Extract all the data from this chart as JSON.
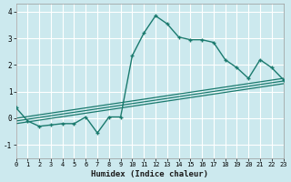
{
  "title": "",
  "xlabel": "Humidex (Indice chaleur)",
  "xlim": [
    0,
    23
  ],
  "ylim": [
    -1.5,
    4.3
  ],
  "yticks": [
    -1,
    0,
    1,
    2,
    3,
    4
  ],
  "xticks": [
    0,
    1,
    2,
    3,
    4,
    5,
    6,
    7,
    8,
    9,
    10,
    11,
    12,
    13,
    14,
    15,
    16,
    17,
    18,
    19,
    20,
    21,
    22,
    23
  ],
  "bg_color": "#cce9ee",
  "grid_color": "#ffffff",
  "line_color": "#1a7a6e",
  "main_line": {
    "x": [
      0,
      1,
      2,
      3,
      4,
      5,
      6,
      7,
      8,
      9,
      10,
      11,
      12,
      13,
      14,
      15,
      16,
      17,
      18,
      19,
      20,
      21,
      22,
      23
    ],
    "y": [
      0.4,
      -0.1,
      -0.3,
      -0.25,
      -0.2,
      -0.2,
      0.05,
      -0.55,
      0.05,
      0.05,
      2.35,
      3.2,
      3.85,
      3.55,
      3.05,
      2.95,
      2.95,
      2.85,
      2.2,
      1.9,
      1.5,
      2.2,
      1.9,
      1.45
    ]
  },
  "reg_lines": [
    {
      "x0": 0,
      "y0": 0.0,
      "x1": 23,
      "y1": 1.5
    },
    {
      "x0": 0,
      "y0": -0.1,
      "x1": 23,
      "y1": 1.4
    },
    {
      "x0": 0,
      "y0": -0.2,
      "x1": 23,
      "y1": 1.3
    }
  ]
}
